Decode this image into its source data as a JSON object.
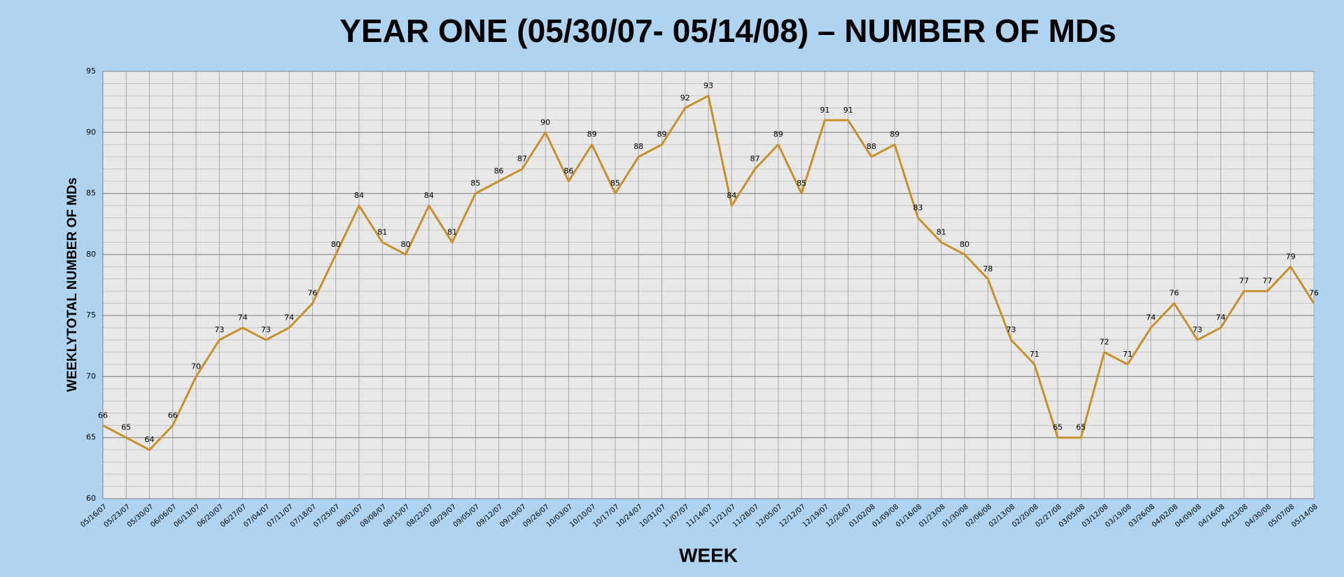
{
  "chart_data": {
    "type": "line",
    "title": "YEAR ONE (05/30/07- 05/14/08) – NUMBER OF MDs",
    "x_label": "WEEK",
    "y_label": "WEEKLYTOTAL NUMBER OF MDs",
    "categories": [
      "05/16/07",
      "05/23/07",
      "05/30/07",
      "06/06/07",
      "06/13/07",
      "06/20/07",
      "06/27/07",
      "07/04/07",
      "07/11/07",
      "07/18/07",
      "07/25/07",
      "08/01/07",
      "08/08/07",
      "08/15/07",
      "08/22/07",
      "08/29/07",
      "09/05/07",
      "09/12/07",
      "09/19/07",
      "09/26/07",
      "10/03/07",
      "10/10/07",
      "10/17/07",
      "10/24/07",
      "10/31/07",
      "11/07/07",
      "11/14/07",
      "11/21/07",
      "11/28/07",
      "12/05/07",
      "12/12/07",
      "12/19/07",
      "12/26/07",
      "01/02/08",
      "01/09/08",
      "01/16/08",
      "01/23/08",
      "01/30/08",
      "02/06/08",
      "02/13/08",
      "02/20/08",
      "02/27/08",
      "03/05/08",
      "03/12/08",
      "03/19/08",
      "03/26/08",
      "04/02/08",
      "04/09/08",
      "04/16/08",
      "04/23/08",
      "04/30/08",
      "05/07/08",
      "05/14/08"
    ],
    "series": [
      {
        "name": "MDs",
        "color": "#c8902a",
        "values": [
          66,
          65,
          64,
          66,
          70,
          73,
          74,
          73,
          74,
          76,
          80,
          84,
          81,
          80,
          84,
          81,
          85,
          86,
          87,
          90,
          86,
          89,
          85,
          88,
          89,
          92,
          93,
          84,
          87,
          89,
          85,
          91,
          91,
          88,
          89,
          83,
          81,
          80,
          78,
          73,
          71,
          65,
          65,
          72,
          71,
          74,
          76,
          73,
          74,
          77,
          77,
          79,
          76
        ]
      }
    ],
    "ylim": [
      60,
      95
    ],
    "yticks": [
      60,
      65,
      70,
      75,
      80,
      85,
      90,
      95
    ],
    "grid": true
  }
}
